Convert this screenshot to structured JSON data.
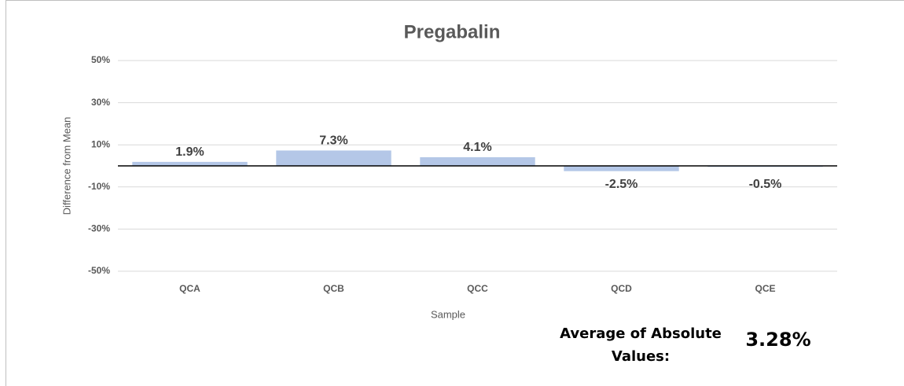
{
  "chart_data": {
    "type": "bar",
    "title": "Pregabalin",
    "x_label": "Sample",
    "y_label": "Difference from Mean",
    "categories": [
      "QCA",
      "QCB",
      "QCC",
      "QCD",
      "QCE"
    ],
    "values": [
      1.9,
      7.3,
      4.1,
      -2.5,
      -0.5
    ],
    "value_labels": [
      "1.9%",
      "7.3%",
      "4.1%",
      "-2.5%",
      "-0.5%"
    ],
    "color": "#b4c7e7",
    "ylim": [
      -50,
      50
    ],
    "yticks": [
      {
        "value": 50,
        "label": "50%"
      },
      {
        "value": 30,
        "label": "30%"
      },
      {
        "value": 10,
        "label": "10%"
      },
      {
        "value": -10,
        "label": "-10%"
      },
      {
        "value": -30,
        "label": "-30%"
      },
      {
        "value": -50,
        "label": "-50%"
      }
    ],
    "grid": true,
    "annotations": [
      {
        "text": "Average of Absolute Values:"
      },
      {
        "text": "3.28%"
      }
    ]
  }
}
